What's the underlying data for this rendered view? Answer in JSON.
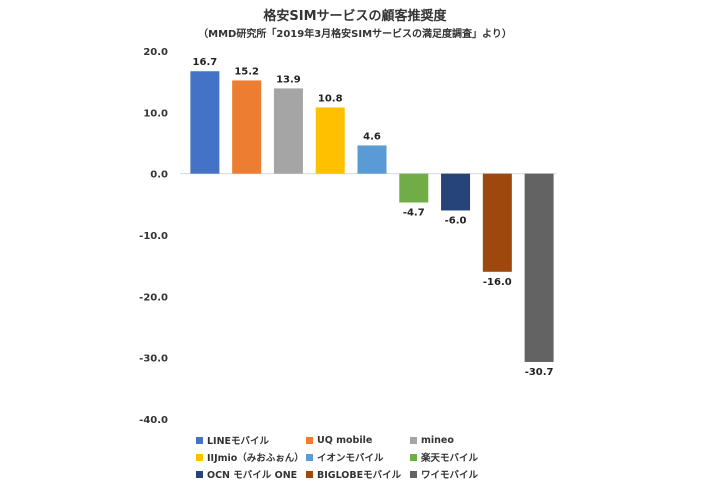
{
  "chart_data": {
    "type": "bar",
    "title": "格安SIMサービスの顧客推奨度",
    "subtitle": "（MMD研究所「2019年3月格安SIMサービスの満足度調査」より）",
    "categories": [
      "LINEモバイル",
      "UQ mobile",
      "mineo",
      "IIJmio（みおふぉん）",
      "イオンモバイル",
      "楽天モバイル",
      "OCN モバイル ONE",
      "BIGLOBEモバイル",
      "ワイモバイル"
    ],
    "values": [
      16.7,
      15.2,
      13.9,
      10.8,
      4.6,
      -4.7,
      -6.0,
      -16.0,
      -30.7
    ],
    "value_labels": [
      "16.7",
      "15.2",
      "13.9",
      "10.8",
      "4.6",
      "-4.7",
      "-6.0",
      "-16.0",
      "-30.7"
    ],
    "colors": [
      "#4472c4",
      "#ed7d31",
      "#a5a5a5",
      "#ffc000",
      "#5b9bd5",
      "#70ad47",
      "#264478",
      "#9e480e",
      "#636363"
    ],
    "ylim": [
      -40,
      20
    ],
    "yticks": [
      "20.0",
      "10.0",
      "0.0",
      "-10.0",
      "-20.0",
      "-30.0",
      "-40.0"
    ],
    "ytick_values": [
      20,
      10,
      0,
      -10,
      -20,
      -30,
      -40
    ],
    "legend_position": "bottom",
    "xlabel": "",
    "ylabel": ""
  }
}
